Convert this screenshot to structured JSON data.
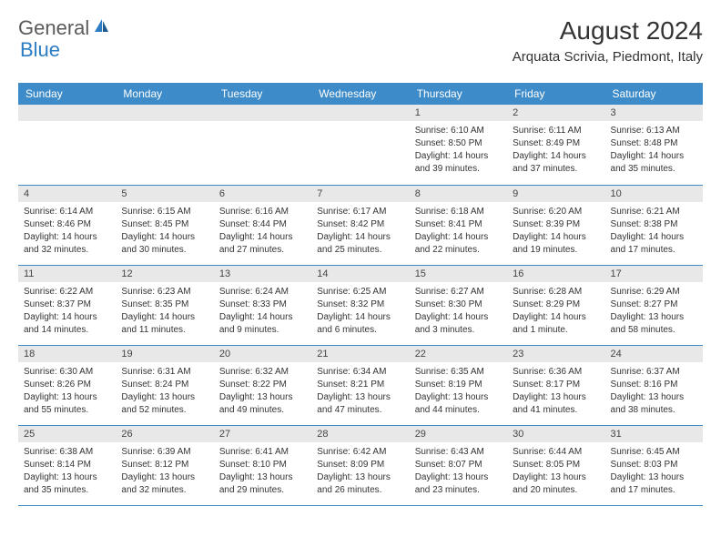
{
  "logo": {
    "text1": "General",
    "text2": "Blue"
  },
  "header": {
    "month": "August 2024",
    "location": "Arquata Scrivia, Piedmont, Italy"
  },
  "dayHeaders": [
    "Sunday",
    "Monday",
    "Tuesday",
    "Wednesday",
    "Thursday",
    "Friday",
    "Saturday"
  ],
  "colors": {
    "headerBg": "#3d8bc9",
    "dayNumBg": "#e8e8e8",
    "logoBlue": "#2d7dc4"
  },
  "weeks": [
    [
      {
        "day": "",
        "lines": []
      },
      {
        "day": "",
        "lines": []
      },
      {
        "day": "",
        "lines": []
      },
      {
        "day": "",
        "lines": []
      },
      {
        "day": "1",
        "lines": [
          "Sunrise: 6:10 AM",
          "Sunset: 8:50 PM",
          "Daylight: 14 hours and 39 minutes."
        ]
      },
      {
        "day": "2",
        "lines": [
          "Sunrise: 6:11 AM",
          "Sunset: 8:49 PM",
          "Daylight: 14 hours and 37 minutes."
        ]
      },
      {
        "day": "3",
        "lines": [
          "Sunrise: 6:13 AM",
          "Sunset: 8:48 PM",
          "Daylight: 14 hours and 35 minutes."
        ]
      }
    ],
    [
      {
        "day": "4",
        "lines": [
          "Sunrise: 6:14 AM",
          "Sunset: 8:46 PM",
          "Daylight: 14 hours and 32 minutes."
        ]
      },
      {
        "day": "5",
        "lines": [
          "Sunrise: 6:15 AM",
          "Sunset: 8:45 PM",
          "Daylight: 14 hours and 30 minutes."
        ]
      },
      {
        "day": "6",
        "lines": [
          "Sunrise: 6:16 AM",
          "Sunset: 8:44 PM",
          "Daylight: 14 hours and 27 minutes."
        ]
      },
      {
        "day": "7",
        "lines": [
          "Sunrise: 6:17 AM",
          "Sunset: 8:42 PM",
          "Daylight: 14 hours and 25 minutes."
        ]
      },
      {
        "day": "8",
        "lines": [
          "Sunrise: 6:18 AM",
          "Sunset: 8:41 PM",
          "Daylight: 14 hours and 22 minutes."
        ]
      },
      {
        "day": "9",
        "lines": [
          "Sunrise: 6:20 AM",
          "Sunset: 8:39 PM",
          "Daylight: 14 hours and 19 minutes."
        ]
      },
      {
        "day": "10",
        "lines": [
          "Sunrise: 6:21 AM",
          "Sunset: 8:38 PM",
          "Daylight: 14 hours and 17 minutes."
        ]
      }
    ],
    [
      {
        "day": "11",
        "lines": [
          "Sunrise: 6:22 AM",
          "Sunset: 8:37 PM",
          "Daylight: 14 hours and 14 minutes."
        ]
      },
      {
        "day": "12",
        "lines": [
          "Sunrise: 6:23 AM",
          "Sunset: 8:35 PM",
          "Daylight: 14 hours and 11 minutes."
        ]
      },
      {
        "day": "13",
        "lines": [
          "Sunrise: 6:24 AM",
          "Sunset: 8:33 PM",
          "Daylight: 14 hours and 9 minutes."
        ]
      },
      {
        "day": "14",
        "lines": [
          "Sunrise: 6:25 AM",
          "Sunset: 8:32 PM",
          "Daylight: 14 hours and 6 minutes."
        ]
      },
      {
        "day": "15",
        "lines": [
          "Sunrise: 6:27 AM",
          "Sunset: 8:30 PM",
          "Daylight: 14 hours and 3 minutes."
        ]
      },
      {
        "day": "16",
        "lines": [
          "Sunrise: 6:28 AM",
          "Sunset: 8:29 PM",
          "Daylight: 14 hours and 1 minute."
        ]
      },
      {
        "day": "17",
        "lines": [
          "Sunrise: 6:29 AM",
          "Sunset: 8:27 PM",
          "Daylight: 13 hours and 58 minutes."
        ]
      }
    ],
    [
      {
        "day": "18",
        "lines": [
          "Sunrise: 6:30 AM",
          "Sunset: 8:26 PM",
          "Daylight: 13 hours and 55 minutes."
        ]
      },
      {
        "day": "19",
        "lines": [
          "Sunrise: 6:31 AM",
          "Sunset: 8:24 PM",
          "Daylight: 13 hours and 52 minutes."
        ]
      },
      {
        "day": "20",
        "lines": [
          "Sunrise: 6:32 AM",
          "Sunset: 8:22 PM",
          "Daylight: 13 hours and 49 minutes."
        ]
      },
      {
        "day": "21",
        "lines": [
          "Sunrise: 6:34 AM",
          "Sunset: 8:21 PM",
          "Daylight: 13 hours and 47 minutes."
        ]
      },
      {
        "day": "22",
        "lines": [
          "Sunrise: 6:35 AM",
          "Sunset: 8:19 PM",
          "Daylight: 13 hours and 44 minutes."
        ]
      },
      {
        "day": "23",
        "lines": [
          "Sunrise: 6:36 AM",
          "Sunset: 8:17 PM",
          "Daylight: 13 hours and 41 minutes."
        ]
      },
      {
        "day": "24",
        "lines": [
          "Sunrise: 6:37 AM",
          "Sunset: 8:16 PM",
          "Daylight: 13 hours and 38 minutes."
        ]
      }
    ],
    [
      {
        "day": "25",
        "lines": [
          "Sunrise: 6:38 AM",
          "Sunset: 8:14 PM",
          "Daylight: 13 hours and 35 minutes."
        ]
      },
      {
        "day": "26",
        "lines": [
          "Sunrise: 6:39 AM",
          "Sunset: 8:12 PM",
          "Daylight: 13 hours and 32 minutes."
        ]
      },
      {
        "day": "27",
        "lines": [
          "Sunrise: 6:41 AM",
          "Sunset: 8:10 PM",
          "Daylight: 13 hours and 29 minutes."
        ]
      },
      {
        "day": "28",
        "lines": [
          "Sunrise: 6:42 AM",
          "Sunset: 8:09 PM",
          "Daylight: 13 hours and 26 minutes."
        ]
      },
      {
        "day": "29",
        "lines": [
          "Sunrise: 6:43 AM",
          "Sunset: 8:07 PM",
          "Daylight: 13 hours and 23 minutes."
        ]
      },
      {
        "day": "30",
        "lines": [
          "Sunrise: 6:44 AM",
          "Sunset: 8:05 PM",
          "Daylight: 13 hours and 20 minutes."
        ]
      },
      {
        "day": "31",
        "lines": [
          "Sunrise: 6:45 AM",
          "Sunset: 8:03 PM",
          "Daylight: 13 hours and 17 minutes."
        ]
      }
    ]
  ]
}
